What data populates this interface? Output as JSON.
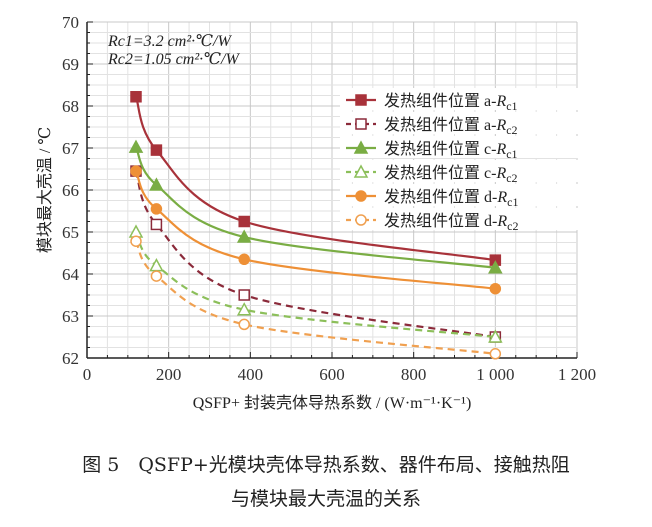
{
  "chart_data": {
    "type": "line",
    "xlabel": "QSFP+ 封装壳体导热系数 / (W·m⁻¹·K⁻¹)",
    "ylabel": "模块最大壳温 / ℃",
    "xlim": [
      0,
      1200
    ],
    "ylim": [
      62,
      70
    ],
    "xticks": [
      0,
      200,
      400,
      600,
      800,
      1000,
      1200
    ],
    "xtick_labels": [
      "0",
      "200",
      "400",
      "600",
      "800",
      "1 000",
      "1 200"
    ],
    "yticks": [
      62,
      63,
      64,
      65,
      66,
      67,
      68,
      69,
      70
    ],
    "grid": true,
    "legend_position": "right",
    "annotations": [
      "Rc1=3.2 cm²·℃/W",
      "Rc2=1.05 cm²·℃/W"
    ],
    "x": [
      120,
      170,
      385,
      1000
    ],
    "series": [
      {
        "name": "发热组件位置 a-Rc1",
        "values": [
          68.22,
          66.95,
          65.25,
          64.33
        ],
        "color": "#a8323a",
        "marker": "square",
        "filled": true,
        "dashed": false
      },
      {
        "name": "发热组件位置 a-Rc2",
        "values": [
          66.45,
          65.18,
          63.5,
          62.5
        ],
        "color": "#8b2a3a",
        "marker": "square",
        "filled": false,
        "dashed": true
      },
      {
        "name": "发热组件位置 c-Rc1",
        "values": [
          67.02,
          66.12,
          64.88,
          64.15
        ],
        "color": "#7aad44",
        "marker": "triangle",
        "filled": true,
        "dashed": false
      },
      {
        "name": "发热组件位置 c-Rc2",
        "values": [
          65.0,
          64.2,
          63.15,
          62.5
        ],
        "color": "#8cbf5a",
        "marker": "triangle",
        "filled": false,
        "dashed": true
      },
      {
        "name": "发热组件位置 d-Rc1",
        "values": [
          66.45,
          65.55,
          64.35,
          63.65
        ],
        "color": "#ee9036",
        "marker": "circle",
        "filled": true,
        "dashed": false
      },
      {
        "name": "发热组件位置 d-Rc2",
        "values": [
          64.78,
          63.95,
          62.8,
          62.1
        ],
        "color": "#f0a050",
        "marker": "circle",
        "filled": false,
        "dashed": true
      }
    ]
  },
  "caption": {
    "line1": "图 5　QSFP+光模块壳体导热系数、器件布局、接触热阻",
    "line2": "与模块最大壳温的关系"
  }
}
